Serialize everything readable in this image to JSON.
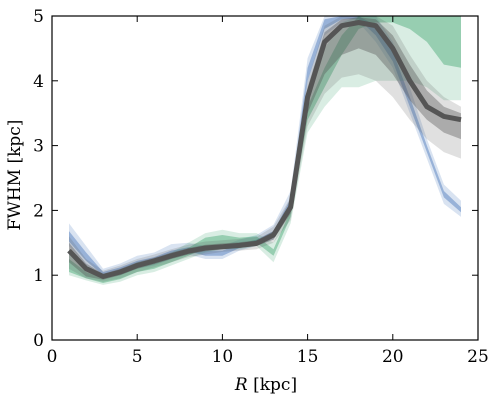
{
  "chart_data": {
    "type": "area",
    "xlabel_symbol": "R",
    "xlabel_unit": "[kpc]",
    "ylabel": "FWHM [kpc]",
    "xlim": [
      0,
      25
    ],
    "ylim": [
      0,
      5
    ],
    "xticks": [
      0,
      5,
      10,
      15,
      20,
      25
    ],
    "yticks": [
      0,
      1,
      2,
      3,
      4,
      5
    ],
    "grid": false,
    "x": [
      1,
      2,
      3,
      4,
      5,
      6,
      7,
      8,
      9,
      10,
      11,
      12,
      13,
      14,
      15,
      16,
      17,
      18,
      19,
      20,
      21,
      22,
      23,
      24
    ],
    "series": [
      {
        "color": "#2f64b0",
        "outer_low": [
          1.45,
          1.15,
          0.95,
          1.0,
          1.1,
          1.15,
          1.25,
          1.32,
          1.25,
          1.25,
          1.38,
          1.45,
          1.55,
          2.0,
          3.9,
          4.7,
          4.9,
          4.9,
          4.6,
          4.2,
          3.5,
          2.8,
          2.1,
          1.9
        ],
        "inner_low": [
          1.52,
          1.22,
          1.0,
          1.05,
          1.15,
          1.2,
          1.3,
          1.37,
          1.3,
          1.3,
          1.42,
          1.48,
          1.58,
          2.05,
          4.0,
          4.8,
          4.95,
          4.95,
          4.7,
          4.3,
          3.6,
          2.9,
          2.2,
          1.97
        ],
        "inner_high": [
          1.68,
          1.35,
          1.05,
          1.12,
          1.22,
          1.28,
          1.38,
          1.43,
          1.38,
          1.38,
          1.48,
          1.55,
          1.68,
          2.18,
          4.2,
          4.95,
          5.0,
          5.0,
          4.85,
          4.45,
          3.75,
          3.0,
          2.3,
          2.05
        ],
        "outer_high": [
          1.8,
          1.45,
          1.1,
          1.18,
          1.3,
          1.35,
          1.48,
          1.5,
          1.45,
          1.45,
          1.55,
          1.62,
          1.78,
          2.3,
          4.35,
          5.0,
          5.0,
          5.0,
          5.0,
          4.6,
          3.9,
          3.1,
          2.4,
          2.15
        ]
      },
      {
        "color": "#2e9a62",
        "outer_low": [
          1.0,
          0.92,
          0.85,
          0.9,
          1.0,
          1.05,
          1.15,
          1.25,
          1.35,
          1.4,
          1.4,
          1.45,
          1.2,
          1.8,
          3.2,
          3.6,
          3.9,
          3.9,
          4.0,
          4.0,
          4.0,
          3.9,
          3.7,
          3.7
        ],
        "inner_low": [
          1.05,
          0.95,
          0.88,
          0.94,
          1.05,
          1.1,
          1.2,
          1.3,
          1.42,
          1.48,
          1.46,
          1.5,
          1.3,
          1.9,
          3.4,
          3.9,
          4.4,
          4.8,
          4.9,
          4.9,
          4.8,
          4.6,
          4.25,
          4.2
        ],
        "inner_high": [
          1.25,
          1.05,
          0.95,
          1.02,
          1.12,
          1.18,
          1.28,
          1.42,
          1.58,
          1.62,
          1.58,
          1.6,
          1.4,
          2.0,
          3.6,
          4.2,
          4.7,
          5.0,
          5.0,
          5.0,
          5.0,
          5.0,
          5.0,
          5.0
        ],
        "outer_high": [
          1.4,
          1.15,
          1.02,
          1.08,
          1.2,
          1.25,
          1.35,
          1.5,
          1.65,
          1.7,
          1.65,
          1.65,
          1.5,
          2.1,
          3.8,
          4.5,
          4.9,
          5.0,
          5.0,
          5.0,
          5.0,
          5.0,
          5.0,
          5.0
        ]
      },
      {
        "color": "#555555",
        "outer_low": [
          1.1,
          0.95,
          0.9,
          0.95,
          1.05,
          1.12,
          1.2,
          1.28,
          1.32,
          1.36,
          1.38,
          1.4,
          1.5,
          1.85,
          3.3,
          3.8,
          4.05,
          4.1,
          4.0,
          3.75,
          3.4,
          3.1,
          2.9,
          2.8
        ],
        "inner_low": [
          1.2,
          0.98,
          0.93,
          1.0,
          1.1,
          1.17,
          1.25,
          1.32,
          1.37,
          1.4,
          1.42,
          1.45,
          1.55,
          1.95,
          3.5,
          4.1,
          4.4,
          4.5,
          4.4,
          4.1,
          3.7,
          3.4,
          3.2,
          3.1
        ],
        "median": [
          1.38,
          1.1,
          0.98,
          1.05,
          1.15,
          1.22,
          1.3,
          1.37,
          1.42,
          1.44,
          1.46,
          1.49,
          1.62,
          2.05,
          3.75,
          4.6,
          4.85,
          4.9,
          4.85,
          4.5,
          4.0,
          3.6,
          3.45,
          3.4
        ],
        "inner_high": [
          1.5,
          1.18,
          1.02,
          1.1,
          1.2,
          1.27,
          1.35,
          1.42,
          1.47,
          1.49,
          1.51,
          1.54,
          1.68,
          2.12,
          3.9,
          4.75,
          4.95,
          4.98,
          4.95,
          4.7,
          4.25,
          3.85,
          3.6,
          3.5
        ],
        "outer_high": [
          1.6,
          1.25,
          1.07,
          1.15,
          1.25,
          1.32,
          1.4,
          1.47,
          1.52,
          1.54,
          1.56,
          1.59,
          1.75,
          2.2,
          4.0,
          4.85,
          5.0,
          5.0,
          5.0,
          4.85,
          4.4,
          4.0,
          3.75,
          3.6
        ]
      }
    ]
  }
}
